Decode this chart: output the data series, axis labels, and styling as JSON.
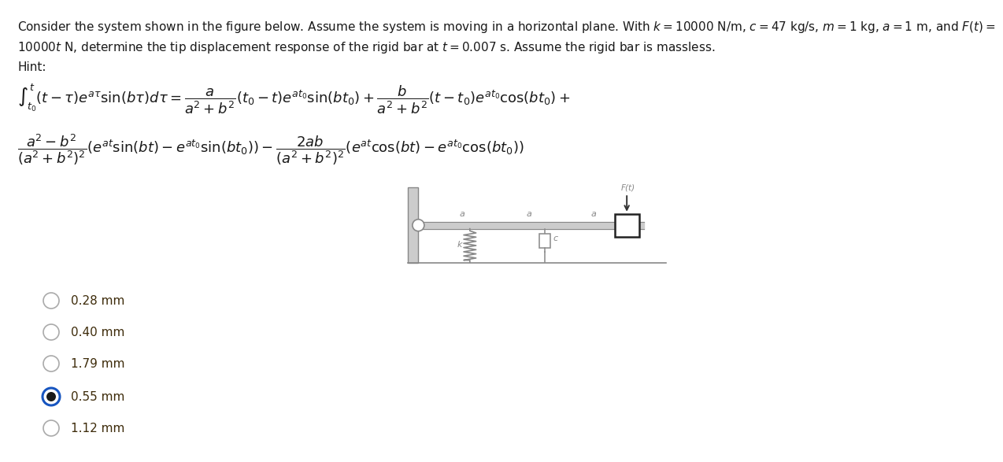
{
  "line1": "Consider the system shown in the figure below. Assume the system is moving in a horizontal plane. With $k = 10000$ N/m, $c = 47$ kg/s, $m = 1$ kg, $a = 1$ m, and $F(t) =$",
  "line2": "$10000t$ N, determine the tip displacement response of the rigid bar at $t = 0.007$ s. Assume the rigid bar is massless.",
  "hint": "Hint:",
  "formula1": "$\\int_{t_0}^{t}(t - \\tau)e^{a\\tau} \\sin(b\\tau)d\\tau = \\dfrac{a}{a^2+b^2}(t_0 - t)e^{at_0} \\sin(bt_0) + \\dfrac{b}{a^2+b^2}(t - t_0)e^{at_0} \\cos(bt_0) +$",
  "formula2": "$\\dfrac{a^2-b^2}{(a^2+b^2)^2}(e^{at} \\sin(bt) - e^{at_0} \\sin(bt_0)) - \\dfrac{2ab}{(a^2+b^2)^2}(e^{at} \\cos(bt) - e^{at_0} \\cos(bt_0))$",
  "choices": [
    "0.28 mm",
    "0.40 mm",
    "1.79 mm",
    "0.55 mm",
    "1.12 mm"
  ],
  "selected_index": 3,
  "bg_color": "#ffffff",
  "text_color": "#1a1a1a",
  "choice_text_color": "#3d2b0a",
  "selected_ring_color": "#1755c0",
  "unselected_ring_color": "#aaaaaa",
  "diagram_gray": "#888888",
  "diagram_light": "#cccccc",
  "formula_fontsize": 13,
  "text_fontsize": 11
}
